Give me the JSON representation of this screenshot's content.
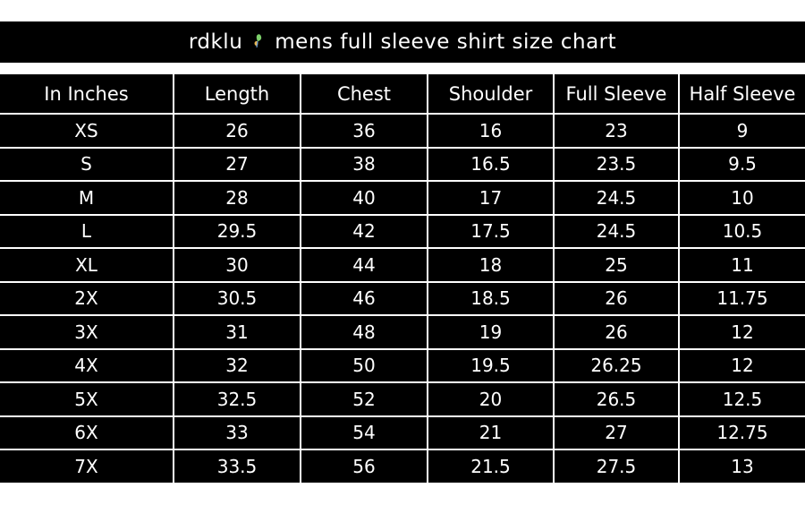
{
  "title": {
    "brand": "rdklu",
    "text": "mens full sleeve shirt size chart",
    "logo_icon": "butterfly-icon"
  },
  "colors": {
    "background": "#000000",
    "text": "#ffffff",
    "grid": "#ffffff"
  },
  "table": {
    "headers": [
      "In Inches",
      "Length",
      "Chest",
      "Shoulder",
      "Full Sleeve",
      "Half Sleeve"
    ],
    "rows": [
      [
        "XS",
        "26",
        "36",
        "16",
        "23",
        "9"
      ],
      [
        "S",
        "27",
        "38",
        "16.5",
        "23.5",
        "9.5"
      ],
      [
        "M",
        "28",
        "40",
        "17",
        "24.5",
        "10"
      ],
      [
        "L",
        "29.5",
        "42",
        "17.5",
        "24.5",
        "10.5"
      ],
      [
        "XL",
        "30",
        "44",
        "18",
        "25",
        "11"
      ],
      [
        "2X",
        "30.5",
        "46",
        "18.5",
        "26",
        "11.75"
      ],
      [
        "3X",
        "31",
        "48",
        "19",
        "26",
        "12"
      ],
      [
        "4X",
        "32",
        "50",
        "19.5",
        "26.25",
        "12"
      ],
      [
        "5X",
        "32.5",
        "52",
        "20",
        "26.5",
        "12.5"
      ],
      [
        "6X",
        "33",
        "54",
        "21",
        "27",
        "12.75"
      ],
      [
        "7X",
        "33.5",
        "56",
        "21.5",
        "27.5",
        "13"
      ]
    ]
  }
}
